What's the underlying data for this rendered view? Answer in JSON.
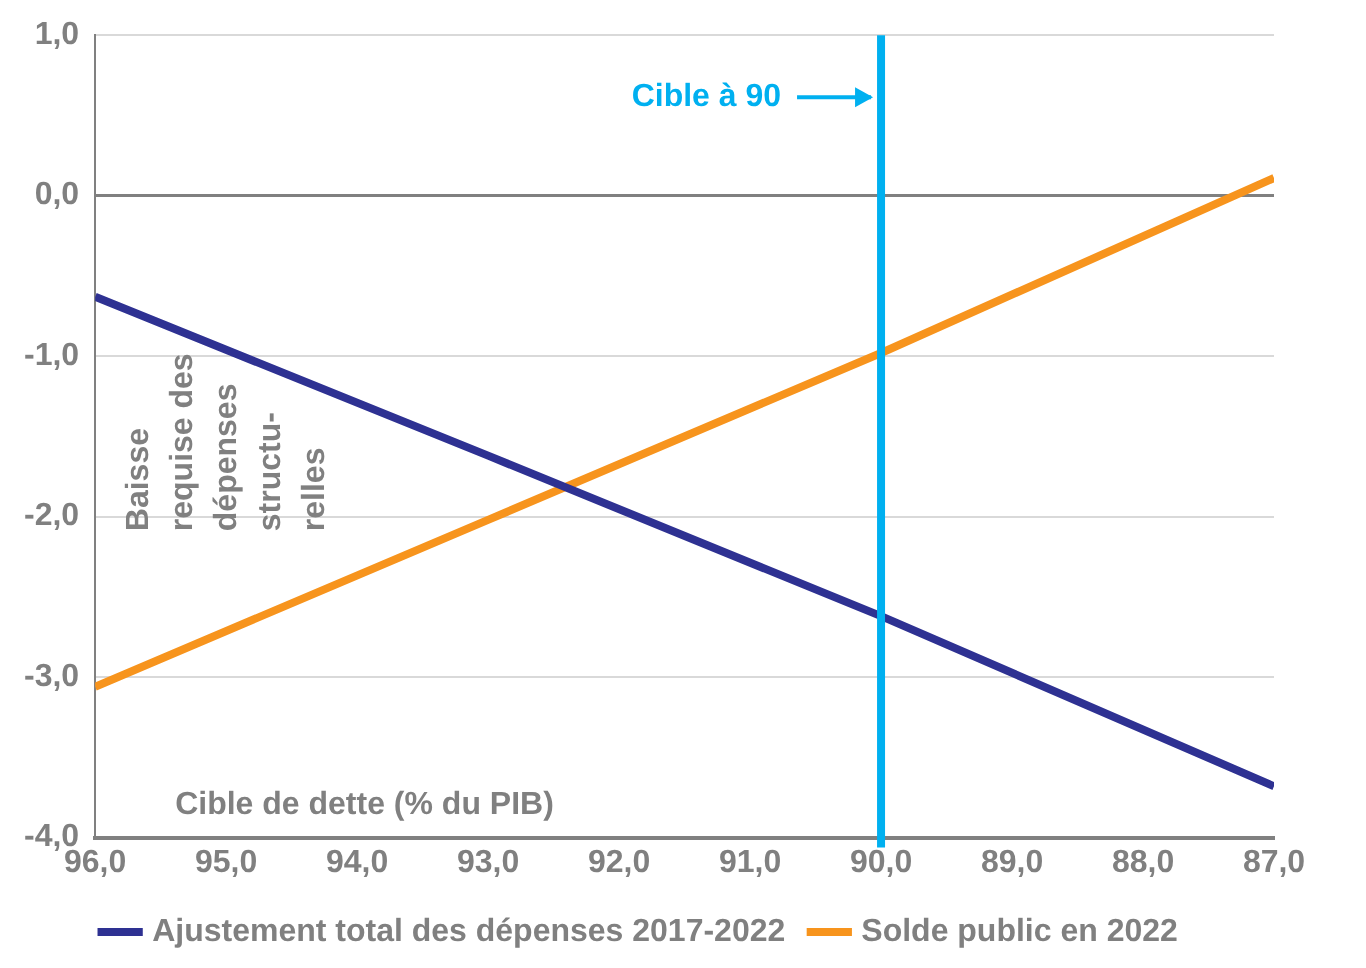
{
  "chart_data": {
    "type": "line",
    "xlabel": "Cible de dette (% du PIB)",
    "ylabel": "Baisse\nrequise des\ndépenses\nstructu-\nrelles",
    "x": [
      96,
      93,
      90,
      87
    ],
    "series": [
      {
        "name": "Ajustement total des dépenses 2017-2022",
        "color": "#2e3192",
        "values": [
          -0.63,
          -1.62,
          -2.62,
          -3.68
        ]
      },
      {
        "name": "Solde public en 2022",
        "color": "#f7941d",
        "values": [
          -3.06,
          -2.02,
          -0.98,
          0.11
        ]
      }
    ],
    "xlim": [
      96,
      87
    ],
    "xticks": [
      {
        "value": 96,
        "label": "96,0"
      },
      {
        "value": 95,
        "label": "95,0"
      },
      {
        "value": 94,
        "label": "94,0"
      },
      {
        "value": 93,
        "label": "93,0"
      },
      {
        "value": 92,
        "label": "92,0"
      },
      {
        "value": 91,
        "label": "91,0"
      },
      {
        "value": 90,
        "label": "90,0"
      },
      {
        "value": 89,
        "label": "89,0"
      },
      {
        "value": 88,
        "label": "88,0"
      },
      {
        "value": 87,
        "label": "87,0"
      }
    ],
    "ylim": [
      -4,
      1
    ],
    "yticks": [
      {
        "value": -4,
        "label": "-4,0"
      },
      {
        "value": -3,
        "label": "-3,0"
      },
      {
        "value": -2,
        "label": "-2,0"
      },
      {
        "value": -1,
        "label": "-1,0"
      },
      {
        "value": 0,
        "label": "0,0"
      },
      {
        "value": 1,
        "label": "1,0"
      }
    ],
    "ref_lines": [
      {
        "axis": "x",
        "value": 90,
        "label": "Cible à 90",
        "color": "#00b0f0"
      }
    ],
    "grid": "y",
    "legend": "bottom",
    "marker": "none",
    "line_style": "solid"
  }
}
